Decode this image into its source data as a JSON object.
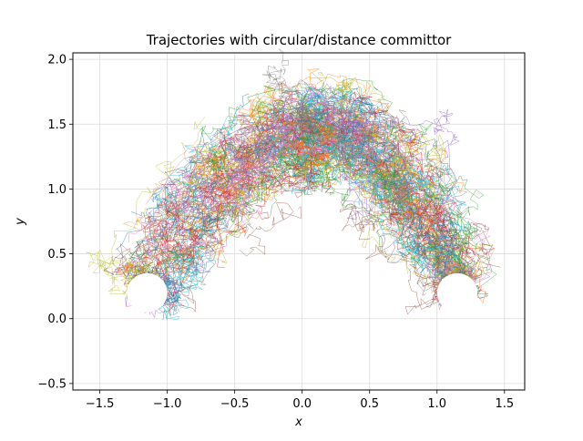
{
  "chart_data": {
    "type": "line",
    "title": "Trajectories with circular/distance committor",
    "xlabel": "x",
    "ylabel": "y",
    "xlim": [
      -1.7,
      1.65
    ],
    "ylim": [
      -0.55,
      2.05
    ],
    "xticks": [
      -1.5,
      -1.0,
      -0.5,
      0.0,
      0.5,
      1.0,
      1.5
    ],
    "xtick_labels": [
      "−1.5",
      "−1.0",
      "−0.5",
      "0.0",
      "0.5",
      "1.0",
      "1.5"
    ],
    "yticks": [
      -0.5,
      0.0,
      0.5,
      1.0,
      1.5,
      2.0
    ],
    "ytick_labels": [
      "−0.5",
      "0.0",
      "0.5",
      "1.0",
      "1.5",
      "2.0"
    ],
    "grid": true,
    "legend": "none",
    "band": {
      "description_shape": "arch",
      "left_basin": {
        "x": -1.15,
        "y": 0.2
      },
      "right_basin": {
        "x": 1.15,
        "y": 0.2
      },
      "peak": {
        "x": 0.1,
        "y": 1.45
      },
      "basin_radius": 0.15,
      "spread": 0.28
    },
    "series_colors": [
      "#1f77b4",
      "#ff7f0e",
      "#2ca02c",
      "#d62728",
      "#9467bd",
      "#8c564b",
      "#e377c2",
      "#7f7f7f",
      "#bcbd22",
      "#17becf"
    ],
    "trajectory_count": 420
  }
}
